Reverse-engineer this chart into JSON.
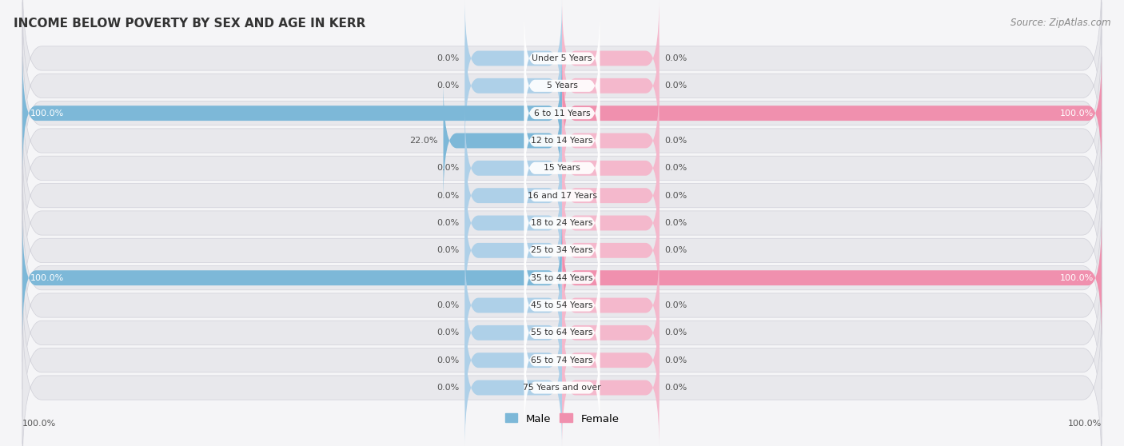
{
  "title": "INCOME BELOW POVERTY BY SEX AND AGE IN KERR",
  "source": "Source: ZipAtlas.com",
  "categories": [
    "Under 5 Years",
    "5 Years",
    "6 to 11 Years",
    "12 to 14 Years",
    "15 Years",
    "16 and 17 Years",
    "18 to 24 Years",
    "25 to 34 Years",
    "35 to 44 Years",
    "45 to 54 Years",
    "55 to 64 Years",
    "65 to 74 Years",
    "75 Years and over"
  ],
  "male_values": [
    0.0,
    0.0,
    100.0,
    22.0,
    0.0,
    0.0,
    0.0,
    0.0,
    100.0,
    0.0,
    0.0,
    0.0,
    0.0
  ],
  "female_values": [
    0.0,
    0.0,
    100.0,
    0.0,
    0.0,
    0.0,
    0.0,
    0.0,
    100.0,
    0.0,
    0.0,
    0.0,
    0.0
  ],
  "male_color": "#7db8d8",
  "female_color": "#f090ae",
  "male_color_light": "#aed0e8",
  "female_color_light": "#f4b8cc",
  "row_bg_color": "#e8e8ec",
  "row_border_color": "#d0d0d8",
  "label_bg_color": "#ffffff",
  "text_color": "#555555",
  "text_white": "#ffffff",
  "max_val": 100.0,
  "stub_val": 18.0,
  "figsize": [
    14.06,
    5.58
  ],
  "dpi": 100
}
